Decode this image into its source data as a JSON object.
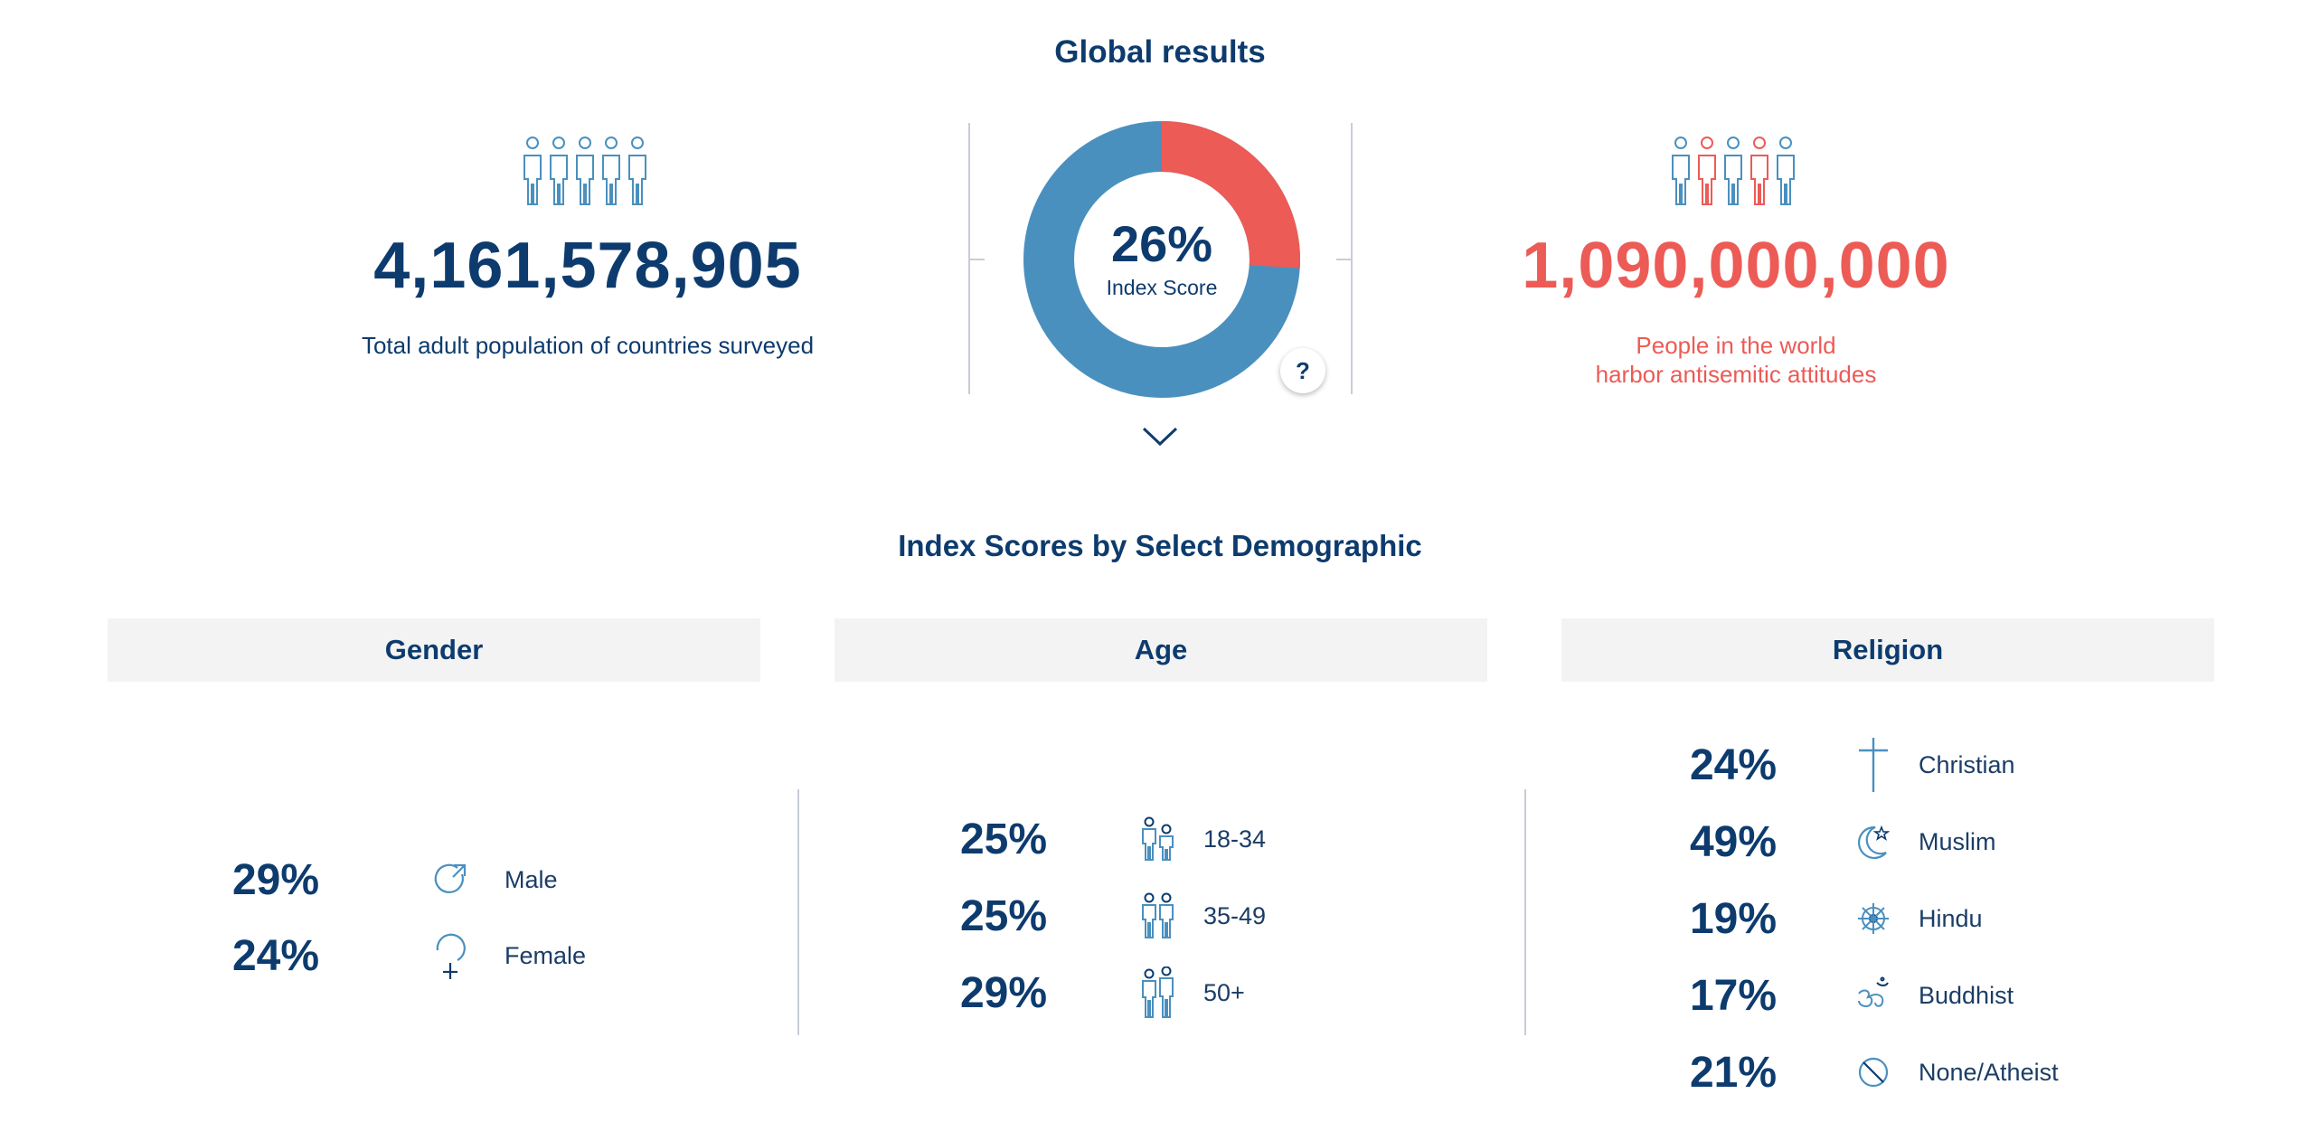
{
  "header": {
    "title": "Global results"
  },
  "left_stat": {
    "value": "4,161,578,905",
    "caption": "Total adult population of countries surveyed"
  },
  "right_stat": {
    "value": "1,090,000,000",
    "caption_line1": "People in the world",
    "caption_line2": "harbor antisemitic attitudes"
  },
  "donut": {
    "value_label": "26%",
    "label": "Index Score",
    "fraction": 0.26,
    "help_label": "?",
    "colors": {
      "score": "#ec5b56",
      "rest": "#4a90bf"
    }
  },
  "colors": {
    "navy": "#0d3b6e",
    "red": "#ec5b56",
    "blue": "#4a90bf",
    "divider": "#c7ccd8"
  },
  "demographics": {
    "title": "Index Scores by Select Demographic",
    "gender": {
      "title": "Gender",
      "rows": [
        {
          "pct": "29%",
          "label": "Male",
          "icon": "male-icon"
        },
        {
          "pct": "24%",
          "label": "Female",
          "icon": "female-icon"
        }
      ]
    },
    "age": {
      "title": "Age",
      "rows": [
        {
          "pct": "25%",
          "label": "18-34",
          "icon": "people-pair-icon"
        },
        {
          "pct": "25%",
          "label": "35-49",
          "icon": "people-pair-icon"
        },
        {
          "pct": "29%",
          "label": "50+",
          "icon": "people-pair-icon"
        }
      ]
    },
    "religion": {
      "title": "Religion",
      "rows": [
        {
          "pct": "24%",
          "label": "Christian",
          "icon": "cross-icon"
        },
        {
          "pct": "49%",
          "label": "Muslim",
          "icon": "crescent-star-icon"
        },
        {
          "pct": "19%",
          "label": "Hindu",
          "icon": "dharma-wheel-icon"
        },
        {
          "pct": "17%",
          "label": "Buddhist",
          "icon": "om-icon"
        },
        {
          "pct": "21%",
          "label": "None/Atheist",
          "icon": "no-religion-icon"
        }
      ]
    }
  }
}
